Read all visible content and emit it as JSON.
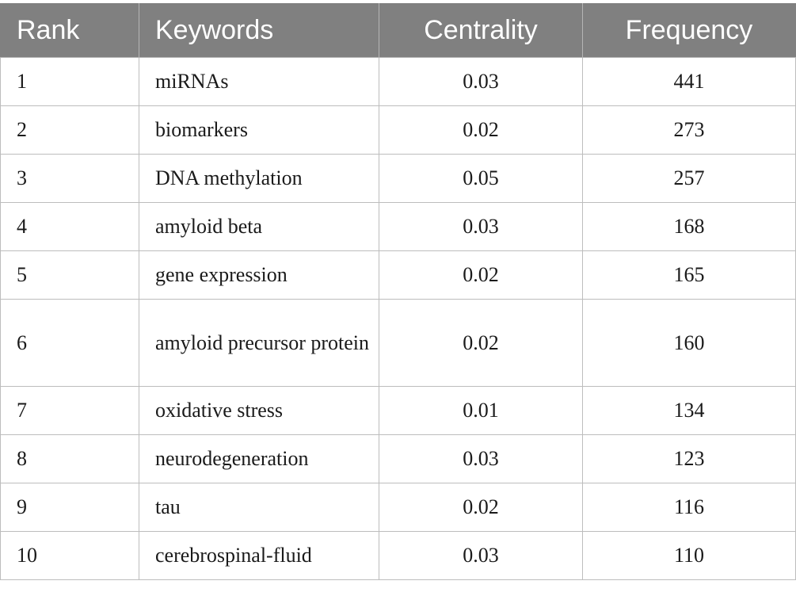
{
  "table": {
    "headers": {
      "rank": "Rank",
      "keywords": "Keywords",
      "centrality": "Centrality",
      "frequency": "Frequency"
    },
    "rows": [
      {
        "rank": "1",
        "keyword": "miRNAs",
        "centrality": "0.03",
        "frequency": "441"
      },
      {
        "rank": "2",
        "keyword": "biomarkers",
        "centrality": "0.02",
        "frequency": "273"
      },
      {
        "rank": "3",
        "keyword": "DNA methylation",
        "centrality": "0.05",
        "frequency": "257"
      },
      {
        "rank": "4",
        "keyword": "amyloid beta",
        "centrality": "0.03",
        "frequency": "168"
      },
      {
        "rank": "5",
        "keyword": "gene expression",
        "centrality": "0.02",
        "frequency": "165"
      },
      {
        "rank": "6",
        "keyword": "amyloid precursor protein",
        "centrality": "0.02",
        "frequency": "160"
      },
      {
        "rank": "7",
        "keyword": "oxidative stress",
        "centrality": "0.01",
        "frequency": "134"
      },
      {
        "rank": "8",
        "keyword": "neurodegeneration",
        "centrality": "0.03",
        "frequency": "123"
      },
      {
        "rank": "9",
        "keyword": "tau",
        "centrality": "0.02",
        "frequency": "116"
      },
      {
        "rank": "10",
        "keyword": "cerebrospinal-fluid",
        "centrality": "0.03",
        "frequency": "110"
      }
    ]
  }
}
